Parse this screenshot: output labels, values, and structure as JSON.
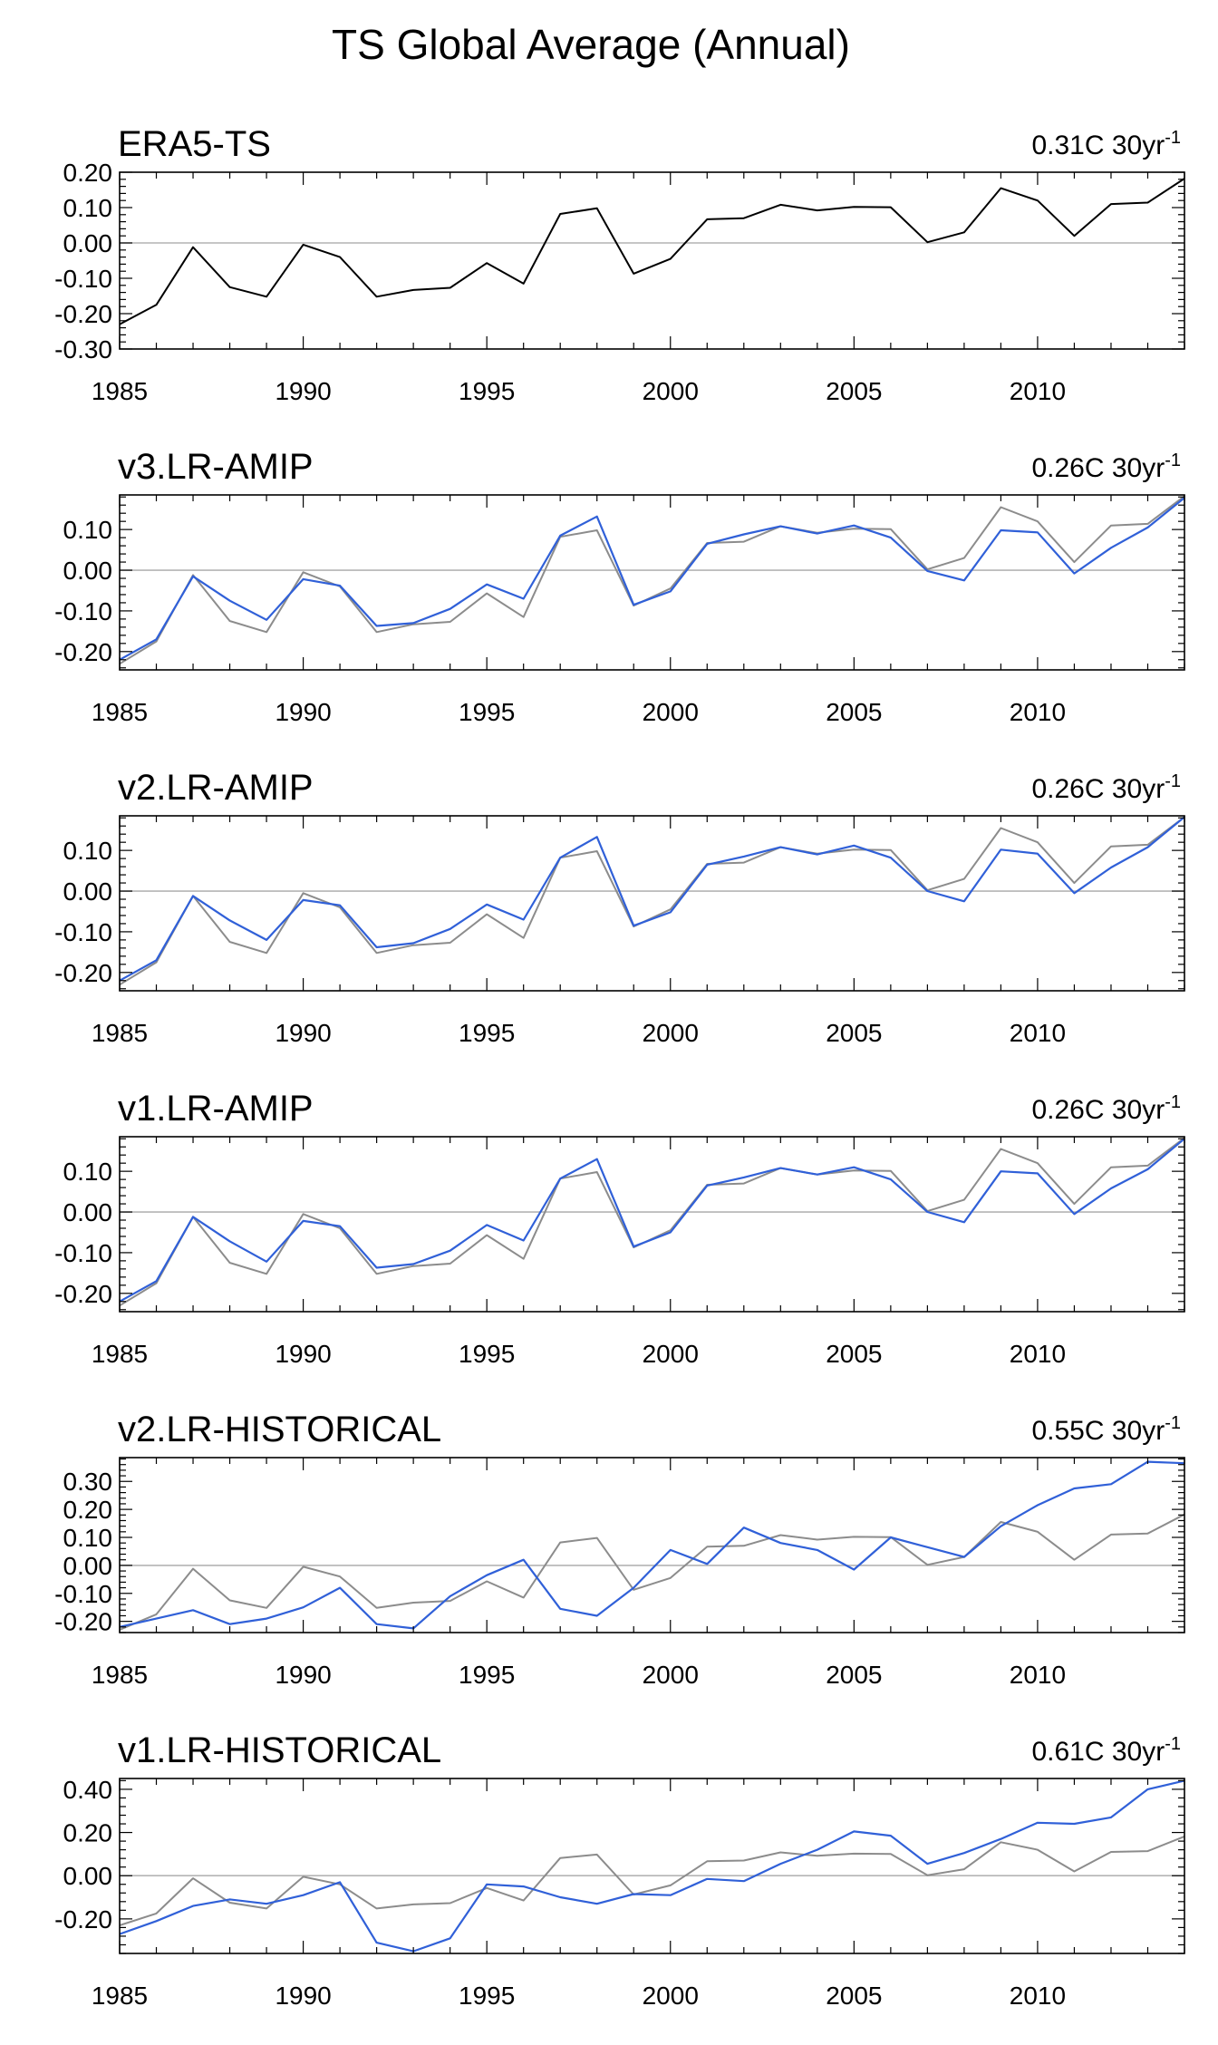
{
  "figure_title": "TS Global Average (Annual)",
  "colors": {
    "reference": "#000000",
    "reference_overlay": "#8c8c8c",
    "model": "#3060d8",
    "zero_line": "#b4b4b4",
    "axis": "#000000"
  },
  "chart_data": [
    {
      "type": "line",
      "title": "ERA5-TS",
      "trend": {
        "value": "0.31C 30yr",
        "exponent": "-1"
      },
      "x": [
        1985,
        1986,
        1987,
        1988,
        1989,
        1990,
        1991,
        1992,
        1993,
        1994,
        1995,
        1996,
        1997,
        1998,
        1999,
        2000,
        2001,
        2002,
        2003,
        2004,
        2005,
        2006,
        2007,
        2008,
        2009,
        2010,
        2011,
        2012,
        2013,
        2014
      ],
      "xlim": [
        1985,
        2014
      ],
      "xticks": [
        1985,
        1990,
        1995,
        2000,
        2005,
        2010
      ],
      "ylim": [
        -0.3,
        0.2
      ],
      "yticks": [
        -0.3,
        -0.2,
        -0.1,
        0.0,
        0.1,
        0.2
      ],
      "ytick_labels": [
        "-0.30",
        "-0.20",
        "-0.10",
        "0.00",
        "0.10",
        "0.20"
      ],
      "series": [
        {
          "name": "ERA5-TS",
          "role": "reference",
          "values": [
            -0.23,
            -0.175,
            -0.012,
            -0.125,
            -0.152,
            -0.005,
            -0.04,
            -0.152,
            -0.133,
            -0.127,
            -0.057,
            -0.115,
            0.082,
            0.098,
            -0.087,
            -0.045,
            0.067,
            0.07,
            0.108,
            0.092,
            0.102,
            0.101,
            0.002,
            0.03,
            0.155,
            0.12,
            0.02,
            0.11,
            0.114,
            0.182
          ]
        }
      ]
    },
    {
      "type": "line",
      "title": "v3.LR-AMIP",
      "trend": {
        "value": "0.26C 30yr",
        "exponent": "-1"
      },
      "x": [
        1985,
        1986,
        1987,
        1988,
        1989,
        1990,
        1991,
        1992,
        1993,
        1994,
        1995,
        1996,
        1997,
        1998,
        1999,
        2000,
        2001,
        2002,
        2003,
        2004,
        2005,
        2006,
        2007,
        2008,
        2009,
        2010,
        2011,
        2012,
        2013,
        2014
      ],
      "xlim": [
        1985,
        2014
      ],
      "xticks": [
        1985,
        1990,
        1995,
        2000,
        2005,
        2010
      ],
      "ylim": [
        -0.245,
        0.185
      ],
      "yticks": [
        -0.2,
        -0.1,
        0.0,
        0.1
      ],
      "ytick_labels": [
        "-0.20",
        "-0.10",
        "0.00",
        "0.10"
      ],
      "series": [
        {
          "name": "ERA5-TS",
          "role": "reference",
          "values": [
            -0.23,
            -0.175,
            -0.012,
            -0.125,
            -0.152,
            -0.005,
            -0.04,
            -0.152,
            -0.133,
            -0.127,
            -0.057,
            -0.115,
            0.082,
            0.098,
            -0.087,
            -0.045,
            0.067,
            0.07,
            0.108,
            0.092,
            0.102,
            0.101,
            0.002,
            0.03,
            0.155,
            0.12,
            0.02,
            0.11,
            0.114,
            0.182
          ]
        },
        {
          "name": "v3.LR-AMIP",
          "role": "model",
          "values": [
            -0.22,
            -0.17,
            -0.015,
            -0.075,
            -0.122,
            -0.022,
            -0.038,
            -0.137,
            -0.13,
            -0.095,
            -0.035,
            -0.07,
            0.085,
            0.132,
            -0.085,
            -0.052,
            0.065,
            0.088,
            0.108,
            0.09,
            0.11,
            0.08,
            -0.002,
            -0.025,
            0.098,
            0.093,
            -0.008,
            0.055,
            0.105,
            0.178
          ]
        }
      ]
    },
    {
      "type": "line",
      "title": "v2.LR-AMIP",
      "trend": {
        "value": "0.26C 30yr",
        "exponent": "-1"
      },
      "x": [
        1985,
        1986,
        1987,
        1988,
        1989,
        1990,
        1991,
        1992,
        1993,
        1994,
        1995,
        1996,
        1997,
        1998,
        1999,
        2000,
        2001,
        2002,
        2003,
        2004,
        2005,
        2006,
        2007,
        2008,
        2009,
        2010,
        2011,
        2012,
        2013,
        2014
      ],
      "xlim": [
        1985,
        2014
      ],
      "xticks": [
        1985,
        1990,
        1995,
        2000,
        2005,
        2010
      ],
      "ylim": [
        -0.245,
        0.185
      ],
      "yticks": [
        -0.2,
        -0.1,
        0.0,
        0.1
      ],
      "ytick_labels": [
        "-0.20",
        "-0.10",
        "0.00",
        "0.10"
      ],
      "series": [
        {
          "name": "ERA5-TS",
          "role": "reference",
          "values": [
            -0.23,
            -0.175,
            -0.012,
            -0.125,
            -0.152,
            -0.005,
            -0.04,
            -0.152,
            -0.133,
            -0.127,
            -0.057,
            -0.115,
            0.082,
            0.098,
            -0.087,
            -0.045,
            0.067,
            0.07,
            0.108,
            0.092,
            0.102,
            0.101,
            0.002,
            0.03,
            0.155,
            0.12,
            0.02,
            0.11,
            0.114,
            0.182
          ]
        },
        {
          "name": "v2.LR-AMIP",
          "role": "model",
          "values": [
            -0.22,
            -0.17,
            -0.012,
            -0.072,
            -0.12,
            -0.022,
            -0.035,
            -0.138,
            -0.128,
            -0.093,
            -0.033,
            -0.07,
            0.082,
            0.133,
            -0.085,
            -0.052,
            0.065,
            0.085,
            0.108,
            0.09,
            0.112,
            0.082,
            0.0,
            -0.025,
            0.102,
            0.092,
            -0.005,
            0.058,
            0.108,
            0.182
          ]
        }
      ]
    },
    {
      "type": "line",
      "title": "v1.LR-AMIP",
      "trend": {
        "value": "0.26C 30yr",
        "exponent": "-1"
      },
      "x": [
        1985,
        1986,
        1987,
        1988,
        1989,
        1990,
        1991,
        1992,
        1993,
        1994,
        1995,
        1996,
        1997,
        1998,
        1999,
        2000,
        2001,
        2002,
        2003,
        2004,
        2005,
        2006,
        2007,
        2008,
        2009,
        2010,
        2011,
        2012,
        2013,
        2014
      ],
      "xlim": [
        1985,
        2014
      ],
      "xticks": [
        1985,
        1990,
        1995,
        2000,
        2005,
        2010
      ],
      "ylim": [
        -0.245,
        0.185
      ],
      "yticks": [
        -0.2,
        -0.1,
        0.0,
        0.1
      ],
      "ytick_labels": [
        "-0.20",
        "-0.10",
        "0.00",
        "0.10"
      ],
      "series": [
        {
          "name": "ERA5-TS",
          "role": "reference",
          "values": [
            -0.23,
            -0.175,
            -0.012,
            -0.125,
            -0.152,
            -0.005,
            -0.04,
            -0.152,
            -0.133,
            -0.127,
            -0.057,
            -0.115,
            0.082,
            0.098,
            -0.087,
            -0.045,
            0.067,
            0.07,
            0.108,
            0.092,
            0.102,
            0.101,
            0.002,
            0.03,
            0.155,
            0.12,
            0.02,
            0.11,
            0.114,
            0.182
          ]
        },
        {
          "name": "v1.LR-AMIP",
          "role": "model",
          "values": [
            -0.22,
            -0.17,
            -0.012,
            -0.072,
            -0.122,
            -0.022,
            -0.035,
            -0.137,
            -0.128,
            -0.095,
            -0.032,
            -0.07,
            0.082,
            0.13,
            -0.085,
            -0.05,
            0.065,
            0.085,
            0.108,
            0.092,
            0.11,
            0.08,
            0.0,
            -0.025,
            0.1,
            0.095,
            -0.005,
            0.058,
            0.105,
            0.18
          ]
        }
      ]
    },
    {
      "type": "line",
      "title": "v2.LR-HISTORICAL",
      "trend": {
        "value": "0.55C 30yr",
        "exponent": "-1"
      },
      "x": [
        1985,
        1986,
        1987,
        1988,
        1989,
        1990,
        1991,
        1992,
        1993,
        1994,
        1995,
        1996,
        1997,
        1998,
        1999,
        2000,
        2001,
        2002,
        2003,
        2004,
        2005,
        2006,
        2007,
        2008,
        2009,
        2010,
        2011,
        2012,
        2013,
        2014
      ],
      "xlim": [
        1985,
        2014
      ],
      "xticks": [
        1985,
        1990,
        1995,
        2000,
        2005,
        2010
      ],
      "ylim": [
        -0.24,
        0.385
      ],
      "yticks": [
        -0.2,
        -0.1,
        0.0,
        0.1,
        0.2,
        0.3
      ],
      "ytick_labels": [
        "-0.20",
        "-0.10",
        "0.00",
        "0.10",
        "0.20",
        "0.30"
      ],
      "series": [
        {
          "name": "ERA5-TS",
          "role": "reference",
          "values": [
            -0.23,
            -0.175,
            -0.012,
            -0.125,
            -0.152,
            -0.005,
            -0.04,
            -0.152,
            -0.133,
            -0.127,
            -0.057,
            -0.115,
            0.082,
            0.098,
            -0.087,
            -0.045,
            0.067,
            0.07,
            0.108,
            0.092,
            0.102,
            0.101,
            0.002,
            0.03,
            0.155,
            0.12,
            0.02,
            0.11,
            0.114,
            0.182
          ]
        },
        {
          "name": "v2.LR-HISTORICAL",
          "role": "model",
          "values": [
            -0.22,
            -0.19,
            -0.16,
            -0.21,
            -0.19,
            -0.15,
            -0.08,
            -0.21,
            -0.225,
            -0.11,
            -0.035,
            0.02,
            -0.155,
            -0.18,
            -0.08,
            0.055,
            0.005,
            0.135,
            0.08,
            0.055,
            -0.015,
            0.1,
            0.065,
            0.03,
            0.14,
            0.215,
            0.275,
            0.29,
            0.37,
            0.365
          ]
        }
      ]
    },
    {
      "type": "line",
      "title": "v1.LR-HISTORICAL",
      "trend": {
        "value": "0.61C 30yr",
        "exponent": "-1"
      },
      "x": [
        1985,
        1986,
        1987,
        1988,
        1989,
        1990,
        1991,
        1992,
        1993,
        1994,
        1995,
        1996,
        1997,
        1998,
        1999,
        2000,
        2001,
        2002,
        2003,
        2004,
        2005,
        2006,
        2007,
        2008,
        2009,
        2010,
        2011,
        2012,
        2013,
        2014
      ],
      "xlim": [
        1985,
        2014
      ],
      "xticks": [
        1985,
        1990,
        1995,
        2000,
        2005,
        2010
      ],
      "ylim": [
        -0.36,
        0.45
      ],
      "yticks": [
        -0.2,
        0.0,
        0.2,
        0.4
      ],
      "ytick_labels": [
        "-0.20",
        "0.00",
        "0.20",
        "0.40"
      ],
      "series": [
        {
          "name": "ERA5-TS",
          "role": "reference",
          "values": [
            -0.23,
            -0.175,
            -0.012,
            -0.125,
            -0.152,
            -0.005,
            -0.04,
            -0.152,
            -0.133,
            -0.127,
            -0.057,
            -0.115,
            0.082,
            0.098,
            -0.087,
            -0.045,
            0.067,
            0.07,
            0.108,
            0.092,
            0.102,
            0.101,
            0.002,
            0.03,
            0.155,
            0.12,
            0.02,
            0.11,
            0.114,
            0.182
          ]
        },
        {
          "name": "v1.LR-HISTORICAL",
          "role": "model",
          "values": [
            -0.27,
            -0.21,
            -0.14,
            -0.11,
            -0.13,
            -0.09,
            -0.03,
            -0.31,
            -0.35,
            -0.29,
            -0.04,
            -0.05,
            -0.1,
            -0.13,
            -0.085,
            -0.09,
            -0.015,
            -0.025,
            0.055,
            0.12,
            0.205,
            0.185,
            0.055,
            0.105,
            0.17,
            0.245,
            0.24,
            0.27,
            0.4,
            0.44
          ]
        }
      ]
    }
  ]
}
